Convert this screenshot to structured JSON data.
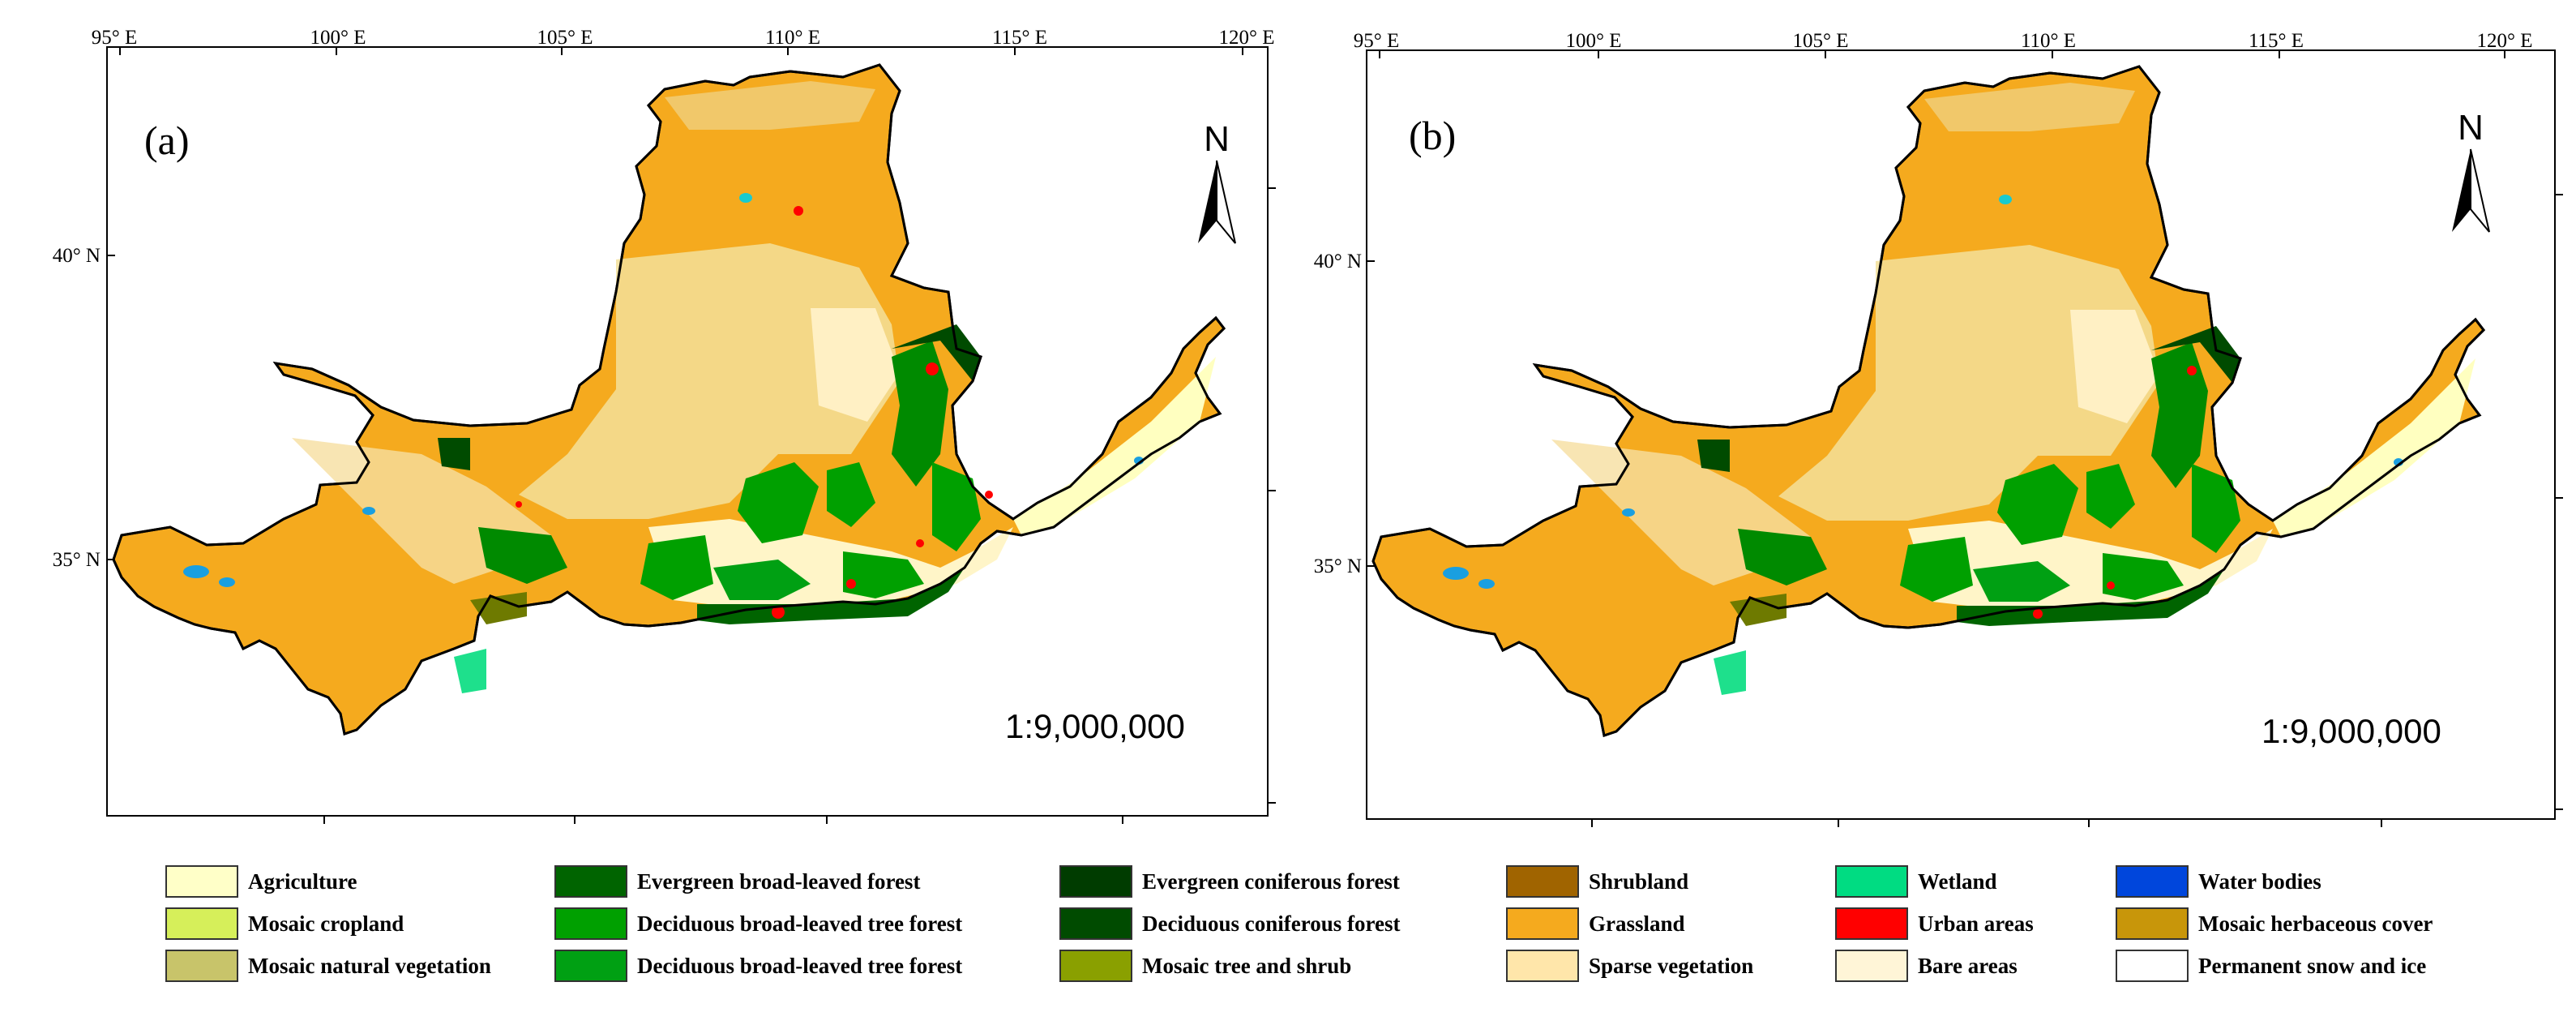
{
  "panels": [
    {
      "label": "(a)",
      "top_ticks": [
        "95° E",
        "100° E",
        "105° E",
        "110° E",
        "115° E",
        "120° E"
      ],
      "left_ticks": [
        "40° N",
        "35° N"
      ],
      "north_label": "N",
      "scale": "1:9,000,000"
    },
    {
      "label": "(b)",
      "top_ticks": [
        "95° E",
        "100° E",
        "105° E",
        "110° E",
        "115° E",
        "120° E"
      ],
      "left_ticks": [
        "40° N",
        "35° N"
      ],
      "north_label": "N",
      "scale": "1:9,000,000"
    }
  ],
  "legend": [
    {
      "label": "Agriculture",
      "color": "#ffffc8"
    },
    {
      "label": "Mosaic cropland",
      "color": "#d6ef5a"
    },
    {
      "label": "Mosaic natural vegetation",
      "color": "#c8c46a"
    },
    {
      "label": "Evergreen broad-leaved forest",
      "color": "#006400"
    },
    {
      "label": "Deciduous broad-leaved tree forest",
      "color": "#00a000"
    },
    {
      "label": "Deciduous broad-leaved tree forest",
      "color": "#00a013"
    },
    {
      "label": "Evergreen coniferous forest",
      "color": "#003c00"
    },
    {
      "label": "Deciduous coniferous forest",
      "color": "#004b00"
    },
    {
      "label": "Mosaic tree and shrub",
      "color": "#8aa000"
    },
    {
      "label": "Shrubland",
      "color": "#a06400"
    },
    {
      "label": "Grassland",
      "color": "#f5aa1e"
    },
    {
      "label": "Sparse vegetation",
      "color": "#ffe6aa"
    },
    {
      "label": "Wetland",
      "color": "#00dc82"
    },
    {
      "label": "Urban areas",
      "color": "#ff0000"
    },
    {
      "label": "Bare areas",
      "color": "#fff5d7"
    },
    {
      "label": "Water bodies",
      "color": "#0046dc"
    },
    {
      "label": "Mosaic herbaceous cover",
      "color": "#c8960a"
    },
    {
      "label": "Permanent snow and ice",
      "color": "#ffffff"
    }
  ]
}
